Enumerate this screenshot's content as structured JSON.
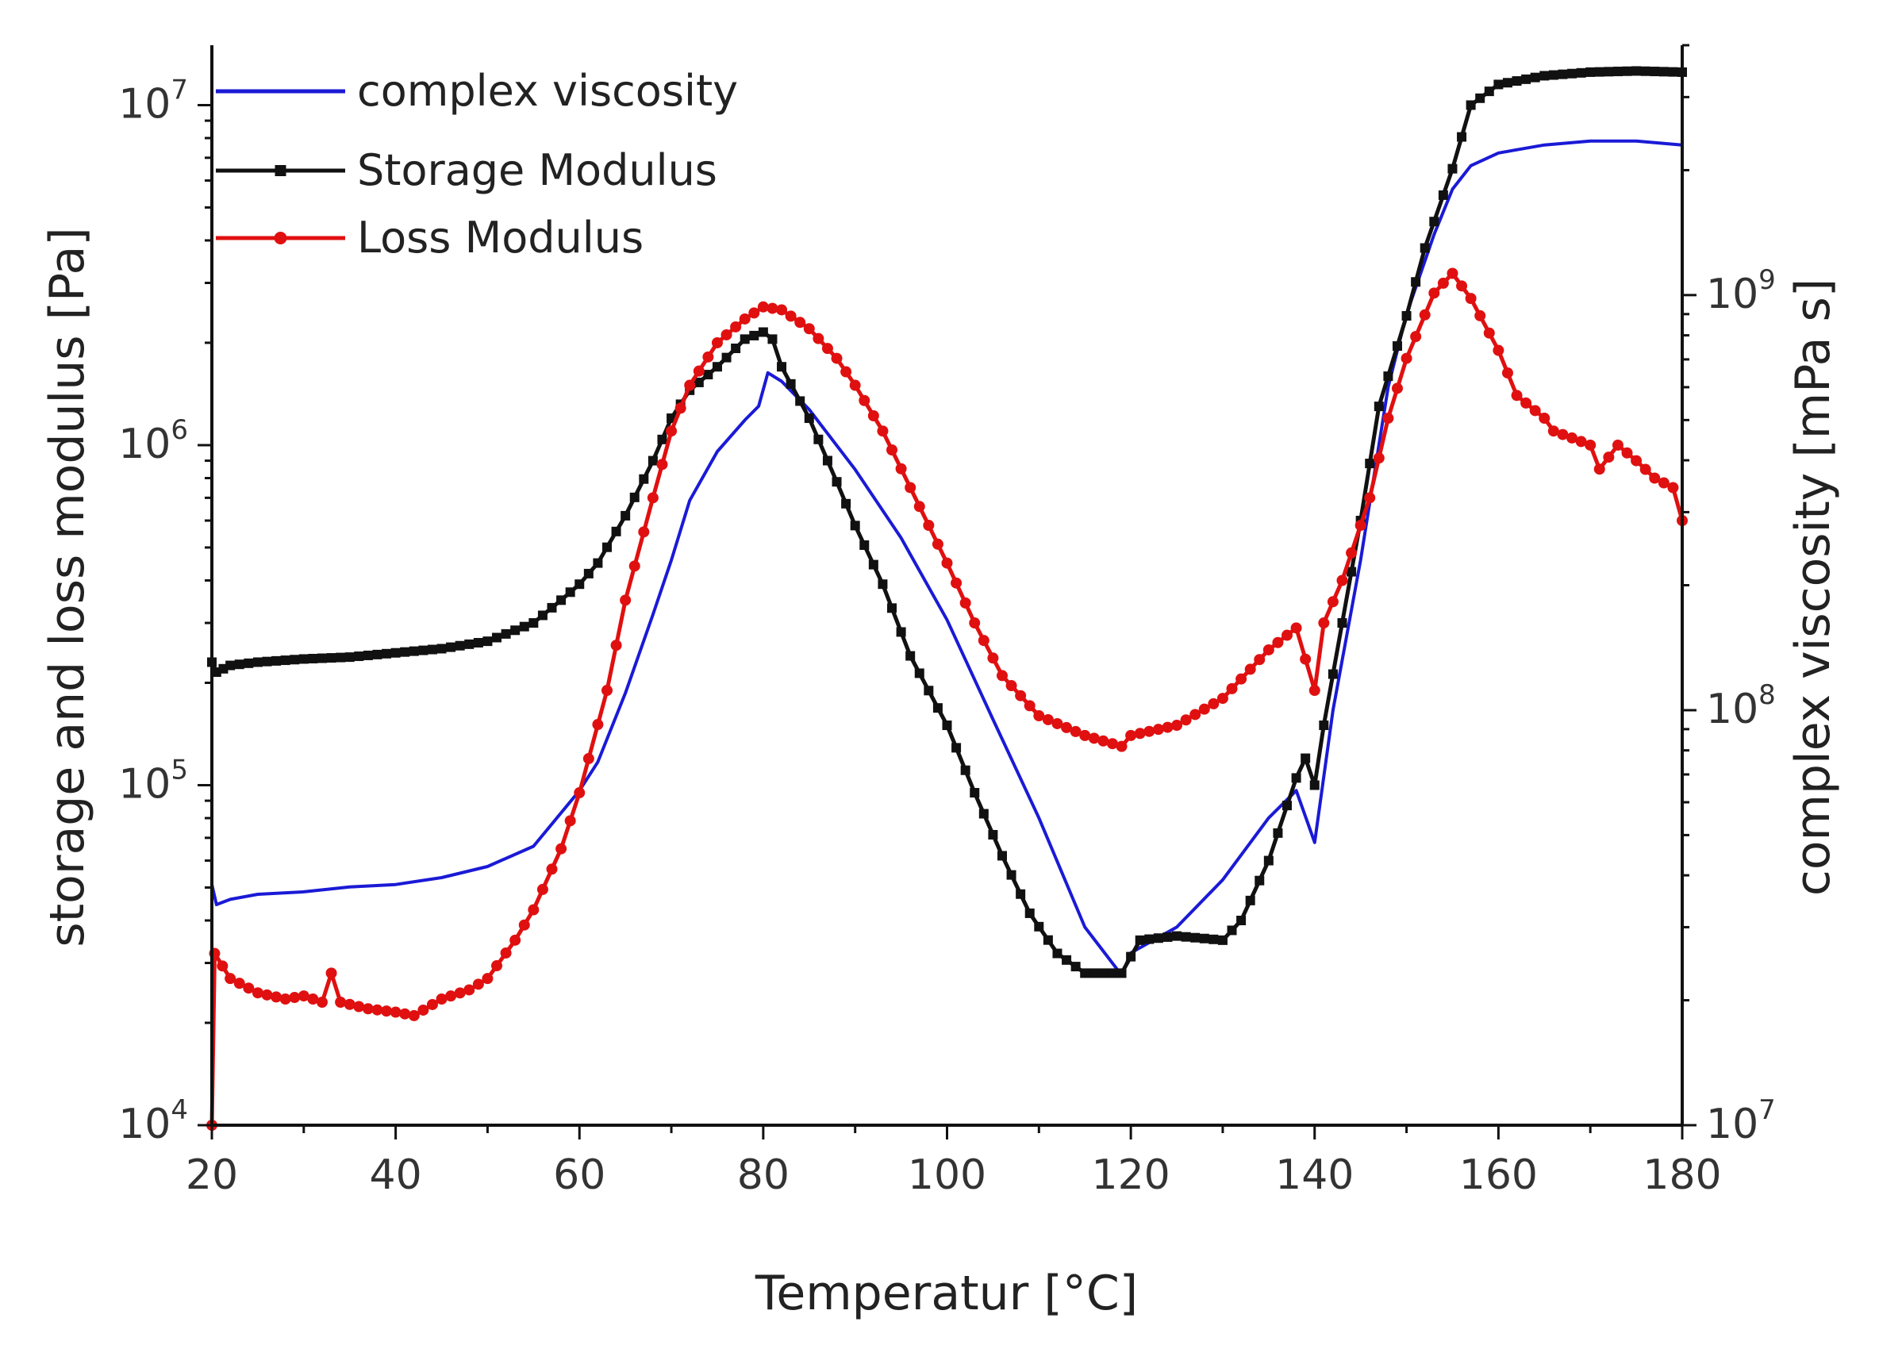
{
  "chart_data": {
    "type": "line",
    "xlabel": "Temperatur [°C]",
    "ylabel": "storage and loss modulus [Pa]",
    "y2label": "complex viscosity [mPa s]",
    "xlim": [
      20,
      180
    ],
    "ylim": [
      10000,
      15000000
    ],
    "y_scale": "log",
    "y2lim": [
      10000000,
      4000000000
    ],
    "y2_scale": "log",
    "x_ticks": [
      "20",
      "40",
      "60",
      "80",
      "100",
      "120",
      "140",
      "160",
      "180"
    ],
    "y_ticks": [
      {
        "base": "10",
        "exp": "4",
        "value": 10000
      },
      {
        "base": "10",
        "exp": "5",
        "value": 100000
      },
      {
        "base": "10",
        "exp": "6",
        "value": 1000000
      },
      {
        "base": "10",
        "exp": "7",
        "value": 10000000
      }
    ],
    "y2_ticks": [
      {
        "base": "10",
        "exp": "7",
        "value": 10000000
      },
      {
        "base": "10",
        "exp": "8",
        "value": 100000000
      },
      {
        "base": "10",
        "exp": "9",
        "value": 1000000000
      }
    ],
    "legend_position": "top-left",
    "series": [
      {
        "name": "complex viscosity",
        "color": "#1a1ad6",
        "axis": "right",
        "marker": "none",
        "points": [
          [
            20,
            38000000
          ],
          [
            20.5,
            34000000
          ],
          [
            22,
            35000000
          ],
          [
            25,
            36000000
          ],
          [
            30,
            36500000
          ],
          [
            35,
            37500000
          ],
          [
            40,
            38000000
          ],
          [
            45,
            39500000
          ],
          [
            50,
            42000000
          ],
          [
            55,
            47000000
          ],
          [
            60,
            64000000
          ],
          [
            62,
            75000000
          ],
          [
            65,
            110000000
          ],
          [
            68,
            170000000
          ],
          [
            70,
            230000000
          ],
          [
            72,
            320000000
          ],
          [
            75,
            420000000
          ],
          [
            78,
            500000000
          ],
          [
            79.5,
            540000000
          ],
          [
            80.5,
            650000000
          ],
          [
            82,
            620000000
          ],
          [
            85,
            530000000
          ],
          [
            90,
            380000000
          ],
          [
            95,
            260000000
          ],
          [
            100,
            165000000
          ],
          [
            105,
            95000000
          ],
          [
            110,
            55000000
          ],
          [
            115,
            30000000
          ],
          [
            119,
            23000000
          ],
          [
            120,
            26000000
          ],
          [
            125,
            30000000
          ],
          [
            130,
            39000000
          ],
          [
            135,
            55000000
          ],
          [
            138,
            64000000
          ],
          [
            140,
            48000000
          ],
          [
            142,
            100000000
          ],
          [
            145,
            230000000
          ],
          [
            148,
            600000000
          ],
          [
            150,
            900000000
          ],
          [
            153,
            1400000000
          ],
          [
            155,
            1800000000
          ],
          [
            157,
            2050000000
          ],
          [
            160,
            2200000000
          ],
          [
            165,
            2300000000
          ],
          [
            170,
            2350000000
          ],
          [
            175,
            2350000000
          ],
          [
            180,
            2300000000
          ]
        ]
      },
      {
        "name": "Storage Modulus",
        "color": "#111111",
        "axis": "left",
        "marker": "square",
        "points": [
          [
            20,
            230000
          ],
          [
            20.5,
            215000
          ],
          [
            22,
            225000
          ],
          [
            25,
            230000
          ],
          [
            30,
            235000
          ],
          [
            35,
            238000
          ],
          [
            40,
            245000
          ],
          [
            45,
            252000
          ],
          [
            50,
            265000
          ],
          [
            55,
            300000
          ],
          [
            58,
            350000
          ],
          [
            60,
            390000
          ],
          [
            62,
            450000
          ],
          [
            65,
            620000
          ],
          [
            68,
            900000
          ],
          [
            70,
            1200000
          ],
          [
            72,
            1450000
          ],
          [
            75,
            1700000
          ],
          [
            78,
            2050000
          ],
          [
            80,
            2150000
          ],
          [
            81,
            2050000
          ],
          [
            82,
            1700000
          ],
          [
            85,
            1200000
          ],
          [
            88,
            780000
          ],
          [
            90,
            580000
          ],
          [
            93,
            390000
          ],
          [
            96,
            240000
          ],
          [
            100,
            150000
          ],
          [
            103,
            95000
          ],
          [
            106,
            62000
          ],
          [
            109,
            42000
          ],
          [
            112,
            32000
          ],
          [
            115,
            28000
          ],
          [
            119,
            28000
          ],
          [
            121,
            35000
          ],
          [
            125,
            36000
          ],
          [
            130,
            35000
          ],
          [
            132,
            40000
          ],
          [
            135,
            60000
          ],
          [
            138,
            105000
          ],
          [
            139,
            120000
          ],
          [
            140,
            100000
          ],
          [
            141,
            150000
          ],
          [
            143,
            300000
          ],
          [
            145,
            600000
          ],
          [
            147,
            1300000
          ],
          [
            150,
            2400000
          ],
          [
            152,
            3800000
          ],
          [
            155,
            6500000
          ],
          [
            157,
            10000000
          ],
          [
            160,
            11500000
          ],
          [
            165,
            12200000
          ],
          [
            170,
            12500000
          ],
          [
            175,
            12600000
          ],
          [
            180,
            12500000
          ]
        ]
      },
      {
        "name": "Loss Modulus",
        "color": "#e01010",
        "axis": "left",
        "marker": "circle",
        "points": [
          [
            20,
            10000
          ],
          [
            20.3,
            32000
          ],
          [
            22,
            27000
          ],
          [
            25,
            24500
          ],
          [
            28,
            23500
          ],
          [
            30,
            24000
          ],
          [
            32,
            23000
          ],
          [
            33,
            28000
          ],
          [
            34,
            23000
          ],
          [
            37,
            22000
          ],
          [
            40,
            21500
          ],
          [
            42,
            21000
          ],
          [
            45,
            23500
          ],
          [
            48,
            25000
          ],
          [
            50,
            27000
          ],
          [
            53,
            35000
          ],
          [
            55,
            43000
          ],
          [
            58,
            65000
          ],
          [
            60,
            95000
          ],
          [
            63,
            190000
          ],
          [
            65,
            350000
          ],
          [
            68,
            700000
          ],
          [
            70,
            1100000
          ],
          [
            72,
            1500000
          ],
          [
            75,
            2000000
          ],
          [
            78,
            2350000
          ],
          [
            80,
            2550000
          ],
          [
            82,
            2500000
          ],
          [
            85,
            2200000
          ],
          [
            88,
            1800000
          ],
          [
            90,
            1500000
          ],
          [
            93,
            1100000
          ],
          [
            96,
            750000
          ],
          [
            100,
            450000
          ],
          [
            103,
            300000
          ],
          [
            106,
            210000
          ],
          [
            110,
            160000
          ],
          [
            115,
            140000
          ],
          [
            119,
            130000
          ],
          [
            120,
            140000
          ],
          [
            125,
            150000
          ],
          [
            130,
            180000
          ],
          [
            135,
            250000
          ],
          [
            138,
            290000
          ],
          [
            140,
            190000
          ],
          [
            141,
            300000
          ],
          [
            143,
            400000
          ],
          [
            146,
            700000
          ],
          [
            148,
            1200000
          ],
          [
            150,
            1800000
          ],
          [
            153,
            2800000
          ],
          [
            155,
            3200000
          ],
          [
            157,
            2700000
          ],
          [
            160,
            1900000
          ],
          [
            162,
            1400000
          ],
          [
            165,
            1200000
          ],
          [
            166,
            1100000
          ],
          [
            168,
            1050000
          ],
          [
            170,
            1000000
          ],
          [
            171,
            850000
          ],
          [
            173,
            1000000
          ],
          [
            175,
            900000
          ],
          [
            177,
            800000
          ],
          [
            179,
            750000
          ],
          [
            180,
            600000
          ]
        ]
      }
    ]
  }
}
